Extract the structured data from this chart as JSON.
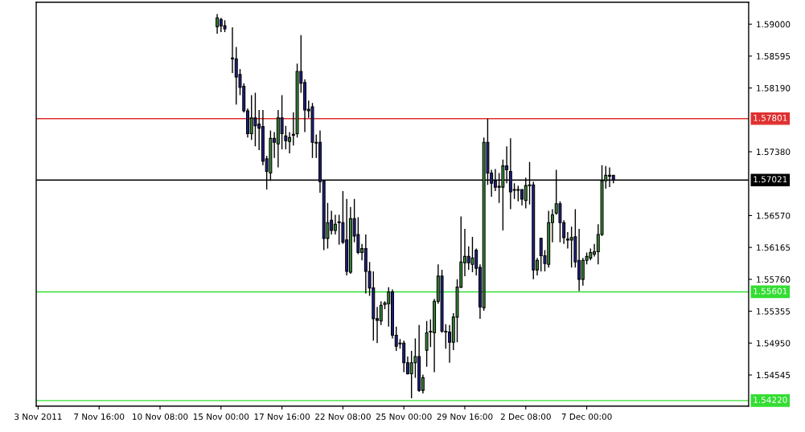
{
  "chart_data": {
    "type": "candlestick",
    "categories": [
      "3 Nov 2011",
      null,
      null,
      null,
      null,
      null,
      null,
      null,
      null,
      null,
      null,
      null,
      null,
      null,
      null,
      null,
      "7 Nov 16:00",
      null,
      null,
      null,
      null,
      null,
      null,
      null,
      null,
      null,
      null,
      null,
      null,
      null,
      null,
      null,
      "10 Nov 08:00",
      null,
      null,
      null,
      null,
      null,
      null,
      null,
      null,
      null,
      null,
      null,
      null,
      null,
      null,
      null,
      "15 Nov 00:00",
      null,
      null,
      null,
      null,
      null,
      null,
      null,
      null,
      null,
      null,
      null,
      null,
      null,
      null,
      null,
      "17 Nov 16:00",
      null,
      null,
      null,
      null,
      null,
      null,
      null,
      null,
      null,
      null,
      null,
      null,
      null,
      null,
      null,
      "22 Nov 08:00",
      null,
      null,
      null,
      null,
      null,
      null,
      null,
      null,
      null,
      null,
      null,
      null,
      null,
      null,
      null,
      "25 Nov 00:00",
      null,
      null,
      null,
      null,
      null,
      null,
      null,
      null,
      null,
      null,
      null,
      null,
      null,
      null,
      null,
      "29 Nov 16:00",
      null,
      null,
      null,
      null,
      null,
      null,
      null,
      null,
      null,
      null,
      null,
      null,
      null,
      null,
      null,
      "2 Dec 08:00",
      null,
      null,
      null,
      null,
      null,
      null,
      null,
      null,
      null,
      null,
      null,
      null,
      null,
      null,
      null,
      "7 Dec 00:00",
      null,
      null,
      null,
      null,
      null,
      null,
      null,
      null,
      null,
      null,
      null,
      null,
      null,
      null,
      null,
      null,
      null,
      null,
      null,
      null,
      null,
      null,
      null,
      null,
      null,
      null,
      null,
      null,
      null,
      null,
      null,
      null,
      null,
      null,
      null,
      null,
      null,
      null,
      null,
      null,
      null,
      null
    ],
    "ohlc": [
      null,
      null,
      null,
      null,
      null,
      null,
      null,
      null,
      null,
      null,
      null,
      null,
      null,
      null,
      null,
      null,
      null,
      null,
      null,
      null,
      null,
      null,
      null,
      null,
      null,
      null,
      null,
      null,
      null,
      null,
      null,
      null,
      null,
      null,
      null,
      null,
      null,
      null,
      null,
      null,
      null,
      null,
      null,
      null,
      null,
      null,
      null,
      [
        1.5897,
        1.5913,
        1.5888,
        1.5908
      ],
      [
        1.5906,
        1.5908,
        1.589,
        1.5898
      ],
      [
        1.5898,
        1.5905,
        1.589,
        1.5894
      ],
      null,
      [
        1.5857,
        1.5896,
        1.5838,
        1.5856
      ],
      [
        1.5856,
        1.5871,
        1.5798,
        1.5833
      ],
      [
        1.5836,
        1.5843,
        1.581,
        1.582
      ],
      [
        1.5821,
        1.5825,
        1.5788,
        1.579
      ],
      [
        1.579,
        1.5793,
        1.5756,
        1.5761
      ],
      [
        1.5761,
        1.581,
        1.5753,
        1.5781
      ],
      [
        1.5781,
        1.5813,
        1.5745,
        1.5771
      ],
      [
        1.5773,
        1.5791,
        1.574,
        1.5768
      ],
      [
        1.577,
        1.5791,
        1.5721,
        1.5726
      ],
      [
        1.5729,
        1.5733,
        1.569,
        1.5713
      ],
      [
        1.5711,
        1.5765,
        1.5701,
        1.5755
      ],
      [
        1.5755,
        1.5763,
        1.573,
        1.575
      ],
      [
        1.5748,
        1.5791,
        1.5718,
        1.5781
      ],
      [
        1.5781,
        1.581,
        1.5741,
        1.5761
      ],
      [
        1.5758,
        1.5771,
        1.5741,
        1.5752
      ],
      [
        1.5751,
        1.5763,
        1.5736,
        1.5756
      ],
      [
        1.5759,
        1.5788,
        1.5746,
        1.576
      ],
      [
        1.5761,
        1.585,
        1.5756,
        1.584
      ],
      [
        1.584,
        1.5886,
        1.5813,
        1.5825
      ],
      [
        1.5826,
        1.583,
        1.5763,
        1.5791
      ],
      [
        1.5792,
        1.5803,
        1.5781,
        1.579
      ],
      [
        1.5795,
        1.58,
        1.573,
        1.575
      ],
      [
        1.575,
        1.576,
        1.573,
        1.5749
      ],
      [
        1.575,
        1.5765,
        1.5686,
        1.57
      ],
      [
        1.5701,
        1.5701,
        1.5613,
        1.5628
      ],
      [
        1.5628,
        1.5673,
        1.5615,
        1.5648
      ],
      [
        1.5651,
        1.5663,
        1.5633,
        1.5638
      ],
      [
        1.5638,
        1.5658,
        1.5633,
        1.5646
      ],
      [
        1.5649,
        1.5658,
        1.562,
        1.5648
      ],
      [
        1.5648,
        1.5688,
        1.5621,
        1.5623
      ],
      [
        1.5626,
        1.5678,
        1.5581,
        1.5586
      ],
      [
        1.5585,
        1.5668,
        1.5583,
        1.5653
      ],
      [
        1.5653,
        1.5678,
        1.5623,
        1.5631
      ],
      [
        1.5633,
        1.5655,
        1.5608,
        1.561
      ],
      [
        1.561,
        1.5621,
        1.56,
        1.5615
      ],
      [
        1.5615,
        1.5633,
        1.5558,
        1.5586
      ],
      [
        1.5586,
        1.5598,
        1.5555,
        1.5565
      ],
      [
        1.5565,
        1.5586,
        1.5498,
        1.5526
      ],
      [
        1.5526,
        1.5541,
        1.5495,
        1.5524
      ],
      [
        1.5523,
        1.5548,
        1.5518,
        1.5543
      ],
      [
        1.5544,
        1.5548,
        1.5538,
        1.5546
      ],
      [
        1.5545,
        1.5566,
        1.5516,
        1.556
      ],
      [
        1.556,
        1.5563,
        1.5501,
        1.5505
      ],
      [
        1.5505,
        1.5516,
        1.5485,
        1.5491
      ],
      [
        1.5494,
        1.55,
        1.5488,
        1.5495
      ],
      [
        1.5495,
        1.5498,
        1.5458,
        1.547
      ],
      [
        1.547,
        1.5478,
        1.5455,
        1.5456
      ],
      [
        1.5456,
        1.5485,
        1.5425,
        1.547
      ],
      [
        1.547,
        1.5501,
        1.5451,
        1.5478
      ],
      [
        1.5478,
        1.5518,
        1.5433,
        1.5435
      ],
      [
        1.5435,
        1.5455,
        1.5431,
        1.5451
      ],
      [
        1.5486,
        1.5523,
        1.5465,
        1.5508
      ],
      [
        1.5509,
        1.5525,
        1.549,
        1.551
      ],
      [
        1.5508,
        1.5551,
        1.5458,
        1.5548
      ],
      [
        1.5548,
        1.5595,
        1.5545,
        1.558
      ],
      [
        1.558,
        1.5588,
        1.5508,
        1.551
      ],
      [
        1.551,
        1.5519,
        1.5488,
        1.5509
      ],
      [
        1.5509,
        1.5518,
        1.547,
        1.5496
      ],
      [
        1.5496,
        1.5533,
        1.5486,
        1.5528
      ],
      [
        1.5528,
        1.5576,
        1.5496,
        1.5566
      ],
      [
        1.5566,
        1.5656,
        1.5565,
        1.5598
      ],
      [
        1.5597,
        1.564,
        1.558,
        1.5605
      ],
      [
        1.5605,
        1.5618,
        1.5588,
        1.5597
      ],
      [
        1.5595,
        1.563,
        1.5585,
        1.5603
      ],
      [
        1.5613,
        1.5615,
        1.5581,
        1.559
      ],
      [
        1.5591,
        1.5595,
        1.5526,
        1.5541
      ],
      [
        1.554,
        1.5756,
        1.5536,
        1.575
      ],
      [
        1.575,
        1.578,
        1.5696,
        1.5711
      ],
      [
        1.5711,
        1.5715,
        1.5681,
        1.5698
      ],
      [
        1.5701,
        1.5716,
        1.5688,
        1.5693
      ],
      [
        1.5694,
        1.5711,
        1.5673,
        1.5693
      ],
      [
        1.5693,
        1.5728,
        1.5638,
        1.572
      ],
      [
        1.572,
        1.5745,
        1.5698,
        1.5715
      ],
      [
        1.5713,
        1.5755,
        1.5665,
        1.5687
      ],
      [
        1.569,
        1.5698,
        1.5678,
        1.5689
      ],
      [
        1.5689,
        1.5695,
        1.5675,
        1.569
      ],
      [
        1.569,
        1.569,
        1.567,
        1.5678
      ],
      [
        1.5676,
        1.5705,
        1.5666,
        1.5695
      ],
      [
        1.5695,
        1.5725,
        1.5671,
        1.5696
      ],
      [
        1.5696,
        1.57,
        1.5576,
        1.5588
      ],
      [
        1.5588,
        1.5603,
        1.5581,
        1.56
      ],
      [
        1.5628,
        1.5628,
        1.5586,
        1.5606
      ],
      [
        1.5606,
        1.5613,
        1.5586,
        1.5596
      ],
      [
        1.5595,
        1.5663,
        1.5591,
        1.5648
      ],
      [
        1.5648,
        1.5665,
        1.5623,
        1.5658
      ],
      [
        1.566,
        1.5715,
        1.5658,
        1.5672
      ],
      [
        1.5672,
        1.5675,
        1.5623,
        1.5648
      ],
      [
        1.5648,
        1.5651,
        1.5621,
        1.5629
      ],
      [
        1.5627,
        1.5636,
        1.5615,
        1.5626
      ],
      [
        1.5626,
        1.5643,
        1.5591,
        1.5629
      ],
      [
        1.563,
        1.5665,
        1.5591,
        1.5598
      ],
      [
        1.56,
        1.564,
        1.5561,
        1.5576
      ],
      [
        1.5576,
        1.5603,
        1.5568,
        1.56
      ],
      [
        1.56,
        1.561,
        1.5595,
        1.5605
      ],
      [
        1.5603,
        1.5615,
        1.56,
        1.561
      ],
      [
        1.5608,
        1.5621,
        1.5605,
        1.5611
      ],
      [
        1.5611,
        1.5646,
        1.5595,
        1.5633
      ],
      [
        1.5633,
        1.5721,
        1.5631,
        1.5701
      ],
      [
        1.5701,
        1.572,
        1.5691,
        1.5708
      ],
      [
        1.5707,
        1.5718,
        1.5693,
        1.5708
      ],
      [
        1.5708,
        1.5708,
        1.5698,
        1.5702
      ],
      null,
      null,
      null,
      null,
      null,
      null,
      null,
      null,
      null,
      null,
      null,
      null,
      null,
      null,
      null,
      null,
      null,
      null,
      null,
      null,
      null,
      null,
      null,
      null,
      null,
      null,
      null,
      null,
      null,
      null,
      null,
      null,
      null,
      null,
      null
    ],
    "colors": [
      null,
      null,
      null,
      null,
      null,
      null,
      null,
      null,
      null,
      null,
      null,
      null,
      null,
      null,
      null,
      null,
      null,
      null,
      null,
      null,
      null,
      null,
      null,
      null,
      null,
      null,
      null,
      null,
      null,
      null,
      null,
      null,
      null,
      null,
      null,
      null,
      null,
      null,
      null,
      null,
      null,
      null,
      null,
      null,
      null,
      null,
      null,
      "#3a913a",
      "#20208c",
      "#20208c",
      null,
      "#20208c",
      "#20208c",
      "#20208c",
      "#20208c",
      "#20208c",
      "#3a913a",
      "#20208c",
      "#20208c",
      "#20208c",
      "#20208c",
      "#3a913a",
      "#20208c",
      "#3a913a",
      "#20208c",
      "#20208c",
      "#3a913a",
      "#3a913a",
      "#3a913a",
      "#20208c",
      "#20208c",
      "#20208c",
      "#20208c",
      "#20208c",
      "#20208c",
      "#20208c",
      "#3a913a",
      "#20208c",
      "#3a913a",
      "#20208c",
      "#20208c",
      "#20208c",
      "#3a913a",
      "#20208c",
      "#20208c",
      "#3a913a",
      "#20208c",
      "#20208c",
      "#20208c",
      "#20208c",
      "#3a913a",
      "#3a913a",
      "#3a913a",
      "#20208c",
      "#20208c",
      "#3a913a",
      "#20208c",
      "#20208c",
      "#3a913a",
      "#3a913a",
      "#20208c",
      "#3a913a",
      "#3a913a",
      "#3a913a",
      "#3a913a",
      "#3a913a",
      "#20208c",
      "#20208c",
      "#20208c",
      "#3a913a",
      "#3a913a",
      "#3a913a",
      "#3a913a",
      "#20208c",
      "#3a913a",
      "#20208c",
      "#20208c",
      "#3a913a",
      "#20208c",
      "#20208c",
      "#20208c",
      "#20208c",
      "#3a913a",
      "#20208c",
      "#20208c",
      "#20208c",
      "#3a913a",
      "#20208c",
      "#3a913a",
      "#3a913a",
      "#20208c",
      "#3a913a",
      "#20208c",
      "#20208c",
      "#3a913a",
      "#3a913a",
      "#3a913a",
      "#20208c",
      "#20208c",
      "#20208c",
      "#3a913a",
      "#20208c",
      "#20208c",
      "#3a913a",
      "#3a913a",
      "#3a913a",
      "#3a913a",
      "#3a913a",
      "#3a913a",
      "#3a913a",
      "#3a913a",
      "#20208c",
      null,
      null,
      null,
      null,
      null,
      null,
      null,
      null,
      null,
      null,
      null,
      null,
      null,
      null,
      null,
      null,
      null,
      null,
      null,
      null,
      null,
      null,
      null,
      null,
      null,
      null,
      null,
      null,
      null,
      null,
      null,
      null,
      null,
      null,
      null
    ],
    "ylim": [
      1.5415,
      1.5928
    ],
    "yticks": [
      {
        "value": 1.59,
        "label": "1.59000"
      },
      {
        "value": 1.58595,
        "label": "1.58595"
      },
      {
        "value": 1.5819,
        "label": "1.58190"
      },
      {
        "value": 1.5738,
        "label": "1.57380"
      },
      {
        "value": 1.5657,
        "label": "1.56570"
      },
      {
        "value": 1.56165,
        "label": "1.56165"
      },
      {
        "value": 1.5576,
        "label": "1.55760"
      },
      {
        "value": 1.55355,
        "label": "1.55355"
      },
      {
        "value": 1.5495,
        "label": "1.54950"
      },
      {
        "value": 1.54545,
        "label": "1.54545"
      }
    ],
    "ref_lines": [
      {
        "axis": "y",
        "value": 1.57801,
        "label": "1.57801",
        "color": "#e03030"
      },
      {
        "axis": "y",
        "value": 1.57021,
        "label": "1.57021",
        "color": "#000000"
      },
      {
        "axis": "y",
        "value": 1.55601,
        "label": "1.55601",
        "color": "#33dd33"
      },
      {
        "axis": "y",
        "value": 1.5422,
        "label": "1.54220",
        "color": "#33dd33"
      }
    ],
    "grid": false,
    "legend": false
  }
}
